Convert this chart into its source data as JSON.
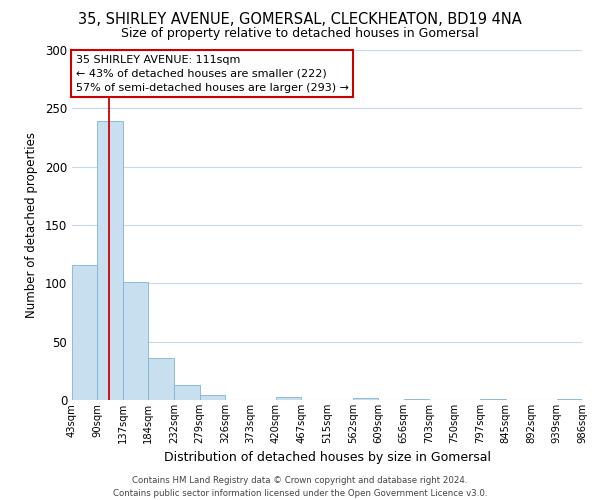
{
  "title": "35, SHIRLEY AVENUE, GOMERSAL, CLECKHEATON, BD19 4NA",
  "subtitle": "Size of property relative to detached houses in Gomersal",
  "xlabel": "Distribution of detached houses by size in Gomersal",
  "ylabel": "Number of detached properties",
  "bar_edges": [
    43,
    90,
    137,
    184,
    232,
    279,
    326,
    373,
    420,
    467,
    515,
    562,
    609,
    656,
    703,
    750,
    797,
    845,
    892,
    939,
    986
  ],
  "bar_heights": [
    116,
    239,
    101,
    36,
    13,
    4,
    0,
    0,
    3,
    0,
    0,
    2,
    0,
    1,
    0,
    0,
    1,
    0,
    0,
    1
  ],
  "bar_color": "#c8dff0",
  "bar_edge_color": "#7fb3d3",
  "property_size": 111,
  "vline_color": "#cc0000",
  "annotation_title": "35 SHIRLEY AVENUE: 111sqm",
  "annotation_line1": "← 43% of detached houses are smaller (222)",
  "annotation_line2": "57% of semi-detached houses are larger (293) →",
  "annotation_box_color": "#ffffff",
  "annotation_box_edge": "#cc0000",
  "ylim": [
    0,
    300
  ],
  "yticks": [
    0,
    50,
    100,
    150,
    200,
    250,
    300
  ],
  "xtick_labels": [
    "43sqm",
    "90sqm",
    "137sqm",
    "184sqm",
    "232sqm",
    "279sqm",
    "326sqm",
    "373sqm",
    "420sqm",
    "467sqm",
    "515sqm",
    "562sqm",
    "609sqm",
    "656sqm",
    "703sqm",
    "750sqm",
    "797sqm",
    "845sqm",
    "892sqm",
    "939sqm",
    "986sqm"
  ],
  "footer_line1": "Contains HM Land Registry data © Crown copyright and database right 2024.",
  "footer_line2": "Contains public sector information licensed under the Open Government Licence v3.0.",
  "background_color": "#ffffff",
  "grid_color": "#c8d8e8"
}
